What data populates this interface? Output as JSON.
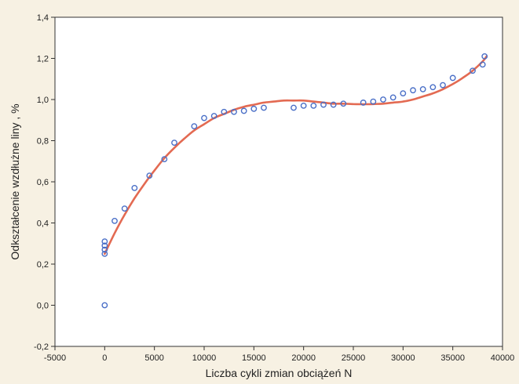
{
  "chart_data": {
    "type": "scatter",
    "title": "",
    "xlabel": "Liczba cykli zmian obciążeń N",
    "ylabel": "Odkształcenie wzdłużne liny , %",
    "xlim": [
      -5000,
      40000
    ],
    "ylim": [
      -0.2,
      1.4
    ],
    "x_ticks": [
      -5000,
      0,
      5000,
      10000,
      15000,
      20000,
      25000,
      30000,
      35000,
      40000
    ],
    "x_tick_labels": [
      "-5000",
      "0",
      "5000",
      "10000",
      "15000",
      "20000",
      "25000",
      "30000",
      "35000",
      "40000"
    ],
    "y_ticks": [
      -0.2,
      0.0,
      0.2,
      0.4,
      0.6,
      0.8,
      1.0,
      1.2,
      1.4
    ],
    "y_tick_labels": [
      "-0,2",
      "0,0",
      "0,2",
      "0,4",
      "0,6",
      "0,8",
      "1,0",
      "1,2",
      "1,4"
    ],
    "grid": false,
    "colors": {
      "points": "#4a6fc7",
      "fit_line": "#e05a3f",
      "background": "#f7f1e3",
      "plot_area": "#ffffff",
      "axis": "#333333"
    },
    "series": [
      {
        "kind": "points",
        "x": [
          0,
          0,
          0,
          0,
          0,
          1000,
          2000,
          3000,
          4500,
          6000,
          7000,
          9000,
          10000,
          11000,
          12000,
          13000,
          14000,
          15000,
          16000,
          19000,
          20000,
          21000,
          22000,
          23000,
          24000,
          26000,
          27000,
          28000,
          29000,
          30000,
          31000,
          32000,
          33000,
          34000,
          35000,
          37000,
          38000,
          38200
        ],
        "y": [
          0.0,
          0.25,
          0.27,
          0.29,
          0.31,
          0.41,
          0.47,
          0.57,
          0.63,
          0.71,
          0.79,
          0.87,
          0.91,
          0.92,
          0.94,
          0.94,
          0.945,
          0.955,
          0.96,
          0.96,
          0.97,
          0.97,
          0.975,
          0.975,
          0.98,
          0.985,
          0.99,
          1.0,
          1.01,
          1.03,
          1.045,
          1.05,
          1.06,
          1.07,
          1.105,
          1.14,
          1.17,
          1.21
        ]
      },
      {
        "kind": "fit_curve",
        "x": [
          0,
          1000,
          2000,
          3000,
          4000,
          5000,
          6000,
          7000,
          8000,
          9000,
          10000,
          11000,
          12000,
          13000,
          14000,
          15000,
          16000,
          17000,
          18000,
          19000,
          20000,
          21000,
          22000,
          23000,
          24000,
          25000,
          26000,
          27000,
          28000,
          29000,
          30000,
          31000,
          32000,
          33000,
          34000,
          35000,
          36000,
          37000,
          38000,
          38400
        ],
        "y": [
          0.25,
          0.35,
          0.44,
          0.52,
          0.59,
          0.655,
          0.715,
          0.765,
          0.81,
          0.85,
          0.88,
          0.91,
          0.93,
          0.95,
          0.965,
          0.975,
          0.985,
          0.99,
          0.995,
          0.995,
          0.995,
          0.99,
          0.985,
          0.98,
          0.98,
          0.978,
          0.977,
          0.978,
          0.98,
          0.985,
          0.99,
          1.0,
          1.015,
          1.03,
          1.05,
          1.075,
          1.105,
          1.14,
          1.185,
          1.21
        ]
      }
    ]
  }
}
